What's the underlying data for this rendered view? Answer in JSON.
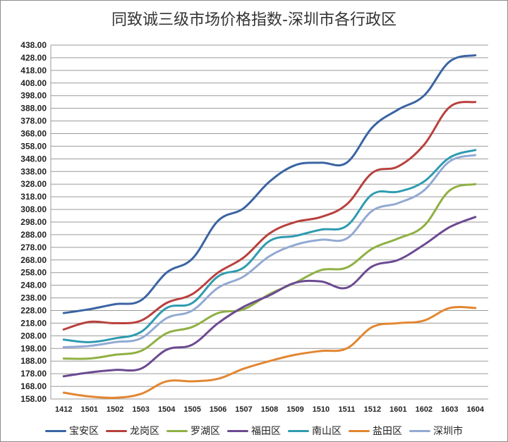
{
  "chart_data": {
    "type": "line",
    "title": "同致诚三级市场价格指数-深圳市各行政区",
    "xlabel": "",
    "ylabel": "",
    "categories": [
      "1412",
      "1501",
      "1502",
      "1503",
      "1504",
      "1505",
      "1506",
      "1507",
      "1508",
      "1509",
      "1510",
      "1511",
      "1512",
      "1601",
      "1602",
      "1603",
      "1604"
    ],
    "ylim": [
      158,
      438
    ],
    "yticks": [
      "158.00",
      "168.00",
      "178.00",
      "188.00",
      "198.00",
      "208.00",
      "218.00",
      "228.00",
      "238.00",
      "248.00",
      "258.00",
      "268.00",
      "278.00",
      "288.00",
      "298.00",
      "308.00",
      "318.00",
      "328.00",
      "338.00",
      "348.00",
      "358.00",
      "368.00",
      "378.00",
      "388.00",
      "398.00",
      "408.00",
      "418.00",
      "428.00",
      "438.00"
    ],
    "grid": true,
    "legend_position": "bottom",
    "series": [
      {
        "name": "宝安区",
        "color": "#3a64a3",
        "values": [
          226,
          229,
          233,
          236,
          258,
          269,
          299,
          309,
          330,
          343,
          345,
          345,
          373,
          387,
          398,
          425,
          430
        ]
      },
      {
        "name": "龙岗区",
        "color": "#b8403d",
        "values": [
          213,
          219,
          218,
          220,
          234,
          241,
          258,
          270,
          289,
          298,
          302,
          312,
          337,
          342,
          359,
          389,
          393
        ]
      },
      {
        "name": "罗湖区",
        "color": "#8fb043",
        "values": [
          190,
          190,
          193,
          196,
          210,
          215,
          226,
          229,
          241,
          250,
          260,
          262,
          277,
          285,
          295,
          323,
          328
        ]
      },
      {
        "name": "福田区",
        "color": "#6c4a92",
        "values": [
          176,
          179,
          181,
          182,
          197,
          201,
          218,
          231,
          240,
          250,
          251,
          246,
          263,
          268,
          280,
          294,
          302
        ]
      },
      {
        "name": "南山区",
        "color": "#2f9bb0",
        "values": [
          205,
          203,
          206,
          211,
          230,
          234,
          255,
          262,
          283,
          287,
          292,
          295,
          320,
          322,
          330,
          349,
          355
        ]
      },
      {
        "name": "盐田区",
        "color": "#e28631",
        "values": [
          163,
          160,
          159,
          162,
          172,
          172,
          174,
          182,
          188,
          193,
          196,
          198,
          215,
          218,
          220,
          230,
          230
        ]
      },
      {
        "name": "深圳市",
        "color": "#93a9d3",
        "values": [
          199,
          200,
          203,
          206,
          222,
          228,
          246,
          255,
          271,
          280,
          284,
          285,
          307,
          313,
          323,
          346,
          351
        ]
      }
    ]
  }
}
